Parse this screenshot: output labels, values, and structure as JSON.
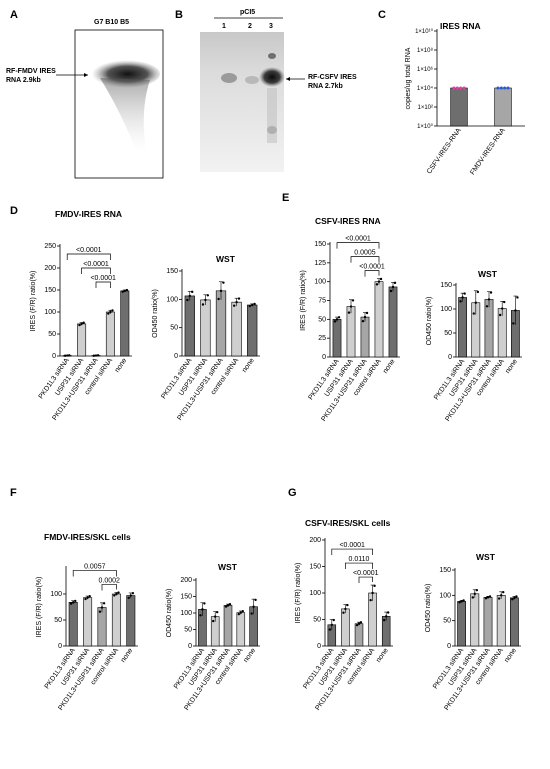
{
  "figure": {
    "panel_labels": [
      "A",
      "B",
      "C",
      "D",
      "E",
      "F",
      "G"
    ],
    "blot_a": {
      "header": "G7 B10 B5",
      "label_line1": "RF-FMDV IRES",
      "label_line2": "RNA 2.9kb"
    },
    "blot_b": {
      "header": "pCI5",
      "lanes": [
        "1",
        "2",
        "3"
      ],
      "label_line1": "RF-CSFV IRES",
      "label_line2": "RNA 2.7kb"
    }
  },
  "colors": {
    "dark": "#6e6e6e",
    "mid": "#a6a6a6",
    "light": "#cfcfcf",
    "pink": "#e040a0",
    "blue": "#2a5bd7"
  },
  "chart_data": [
    {
      "id": "C",
      "type": "bar",
      "title": "IRES RNA",
      "ylabel": "copies/ug total RNA",
      "scale": "log",
      "yticks": [
        "1×10⁰",
        "1×10²",
        "1×10⁴",
        "1×10⁶",
        "1×10⁸",
        "1×10¹⁰"
      ],
      "ylim": [
        1,
        10000000000
      ],
      "categories": [
        "CSFV-IRES-RNA",
        "FMDV-IRES-RNA"
      ],
      "values": [
        10000,
        10000
      ]
    },
    {
      "id": "D1",
      "type": "bar",
      "title": "FMDV-IRES RNA",
      "ylabel": "IRES (F/R) ratio(%)",
      "yticks": [
        "0",
        "50",
        "100",
        "150",
        "200",
        "250"
      ],
      "ylim": [
        0,
        250
      ],
      "categories": [
        "PKD1L3 siRNA",
        "USP31 siRNA",
        "PKD1L3+USP31 siRNA",
        "control siRNA",
        "none"
      ],
      "values": [
        1,
        73,
        1,
        100,
        148
      ],
      "errors": [
        0.5,
        3,
        0.5,
        4,
        2
      ],
      "brackets": [
        {
          "from": 0,
          "to": 3,
          "label": "<0.0001"
        },
        {
          "from": 1,
          "to": 3,
          "label": "<0.0001"
        },
        {
          "from": 2,
          "to": 3,
          "label": "<0.0001"
        }
      ]
    },
    {
      "id": "D2",
      "type": "bar",
      "title": "WST",
      "ylabel": "OD450 ratio(%)",
      "yticks": [
        "0",
        "50",
        "100",
        "150"
      ],
      "ylim": [
        0,
        150
      ],
      "categories": [
        "PKD1L3 siRNA",
        "USP31 siRNA",
        "PKD1L3+USP31 siRNA",
        "control siRNA",
        "none"
      ],
      "values": [
        106,
        99,
        115,
        95,
        90
      ],
      "errors": [
        8,
        9,
        16,
        7,
        2
      ],
      "brackets": []
    },
    {
      "id": "E1",
      "type": "bar",
      "title": "CSFV-IRES RNA",
      "ylabel": "IRES (F/R) ratio(%)",
      "yticks": [
        "0",
        "25",
        "50",
        "75",
        "100",
        "125",
        "150"
      ],
      "ylim": [
        0,
        150
      ],
      "categories": [
        "PKD1L3 siRNA",
        "USP31 siRNA",
        "PKD1L3+USP31 siRNA",
        "control siRNA",
        "none"
      ],
      "values": [
        50,
        67,
        53,
        100,
        93
      ],
      "errors": [
        3,
        9,
        6,
        4,
        6
      ],
      "brackets": [
        {
          "from": 0,
          "to": 3,
          "label": "<0.0001"
        },
        {
          "from": 1,
          "to": 3,
          "label": "0.0005"
        },
        {
          "from": 2,
          "to": 3,
          "label": "<0.0001"
        }
      ]
    },
    {
      "id": "E2",
      "type": "bar",
      "title": "WST",
      "ylabel": "OD450 ratio(%)",
      "yticks": [
        "0",
        "50",
        "100",
        "150"
      ],
      "ylim": [
        0,
        150
      ],
      "categories": [
        "PKD1L3 siRNA",
        "USP31 siRNA",
        "PKD1L3+USP31 siRNA",
        "control siRNA",
        "none"
      ],
      "values": [
        124,
        113,
        120,
        101,
        97
      ],
      "errors": [
        9,
        25,
        16,
        15,
        30
      ],
      "brackets": []
    },
    {
      "id": "F1",
      "type": "bar",
      "title": "FMDV-IRES/SKL cells",
      "ylabel": "IRES (F/R) ratio(%)",
      "yticks": [
        "0",
        "50",
        "100"
      ],
      "ylim": [
        0,
        150
      ],
      "categories": [
        "PKD1L3 siRNA",
        "USP31 siRNA",
        "PKD1L3+USP31 siRNA",
        "control siRNA",
        "none"
      ],
      "values": [
        84,
        93,
        74,
        100,
        97
      ],
      "errors": [
        3,
        3,
        9,
        3,
        5
      ],
      "brackets": [
        {
          "from": 0,
          "to": 3,
          "label": "0.0057"
        },
        {
          "from": 2,
          "to": 3,
          "label": "0.0002"
        }
      ]
    },
    {
      "id": "F2",
      "type": "bar",
      "title": "WST",
      "ylabel": "OD450 ratio(%)",
      "yticks": [
        "0",
        "50",
        "100",
        "150",
        "200"
      ],
      "ylim": [
        0,
        200
      ],
      "categories": [
        "PKD1L3 siRNA",
        "USP31 siRNA",
        "PKD1L3+USP31 siRNA",
        "control siRNA",
        "none"
      ],
      "values": [
        111,
        89,
        123,
        101,
        119
      ],
      "errors": [
        20,
        15,
        4,
        5,
        23
      ],
      "brackets": []
    },
    {
      "id": "G1",
      "type": "bar",
      "title": "CSFV-IRES/SKL cells",
      "ylabel": "IRES (F/R) ratio(%)",
      "yticks": [
        "0",
        "50",
        "100",
        "150",
        "200"
      ],
      "ylim": [
        0,
        200
      ],
      "categories": [
        "PKD1L3 siRNA",
        "USP31 siRNA",
        "PKD1L3+USP31 siRNA",
        "control siRNA",
        "none"
      ],
      "values": [
        40,
        70,
        42,
        100,
        56
      ],
      "errors": [
        10,
        8,
        3,
        15,
        8
      ],
      "brackets": [
        {
          "from": 0,
          "to": 3,
          "label": "<0.0001"
        },
        {
          "from": 1,
          "to": 3,
          "label": "0.0110"
        },
        {
          "from": 2,
          "to": 3,
          "label": "<0.0001"
        }
      ]
    },
    {
      "id": "G2",
      "type": "bar",
      "title": "WST",
      "ylabel": "OD450 ratio(%)",
      "yticks": [
        "0",
        "50",
        "100",
        "150"
      ],
      "ylim": [
        0,
        150
      ],
      "categories": [
        "PKD1L3 siRNA",
        "USP31 siRNA",
        "PKD1L3+USP31 siRNA",
        "control siRNA",
        "none"
      ],
      "values": [
        88,
        103,
        96,
        100,
        95
      ],
      "errors": [
        2,
        8,
        2,
        7,
        3
      ],
      "brackets": []
    }
  ]
}
